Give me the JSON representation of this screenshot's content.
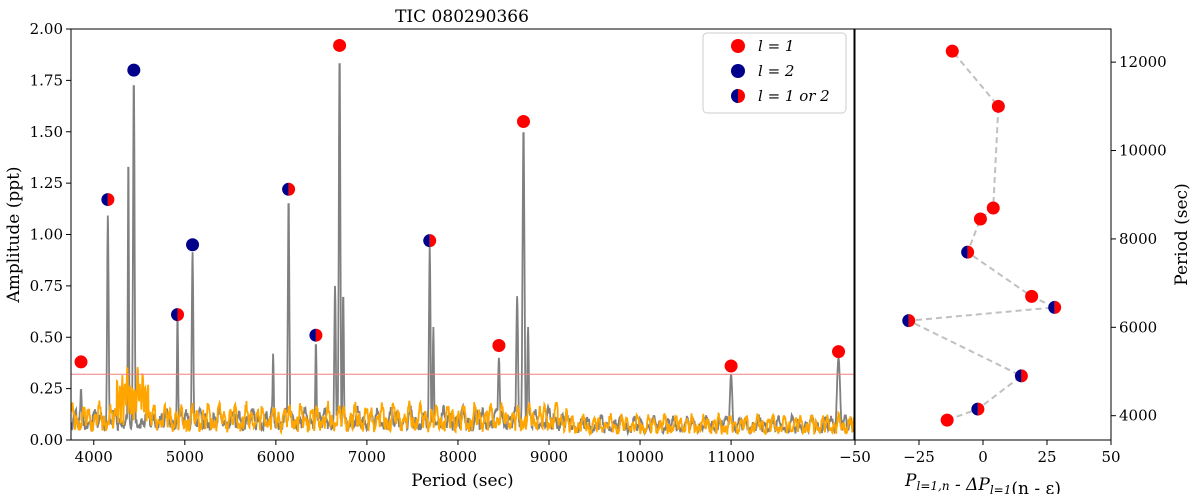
{
  "title": "TIC 080290366",
  "colors": {
    "l1": "#ff0000",
    "l2": "#00008b",
    "gray": "#808080",
    "orange": "#ffa500",
    "threshold": "#f08080",
    "dashed": "#c0c0c0"
  },
  "chart_data": [
    {
      "type": "line",
      "title": "TIC 080290366",
      "xlabel": "Period (sec)",
      "ylabel": "Amplitude (ppt)",
      "xlim": [
        3750,
        12350
      ],
      "ylim": [
        0,
        2.0
      ],
      "xticks": [
        "4000",
        "5000",
        "6000",
        "7000",
        "8000",
        "9000",
        "10000",
        "11000"
      ],
      "yticks": [
        "0.00",
        "0.25",
        "0.50",
        "0.75",
        "1.00",
        "1.25",
        "1.50",
        "1.75",
        "2.00"
      ],
      "threshold": 0.32,
      "grid": false,
      "legend_position": "top-right",
      "legend": [
        {
          "label": "l = 1",
          "mode": "1"
        },
        {
          "label": "l = 2",
          "mode": "2"
        },
        {
          "label": "l = 1 or 2",
          "mode": "1or2"
        }
      ],
      "series": [
        {
          "role": "periodogram",
          "color": "gray"
        },
        {
          "role": "residual",
          "color": "orange"
        }
      ],
      "peaks": [
        {
          "x": 3860,
          "y": 0.25,
          "w": 12,
          "mode": null
        },
        {
          "x": 4155,
          "y": 1.1,
          "w": 12,
          "mode": null
        },
        {
          "x": 4380,
          "y": 1.41,
          "w": 8,
          "mode": null
        },
        {
          "x": 4440,
          "y": 1.77,
          "w": 12,
          "mode": null
        },
        {
          "x": 4920,
          "y": 0.6,
          "w": 10,
          "mode": null
        },
        {
          "x": 5085,
          "y": 0.92,
          "w": 12,
          "mode": null
        },
        {
          "x": 5970,
          "y": 0.42,
          "w": 10,
          "mode": null
        },
        {
          "x": 6140,
          "y": 1.18,
          "w": 12,
          "mode": null
        },
        {
          "x": 6440,
          "y": 0.48,
          "w": 10,
          "mode": null
        },
        {
          "x": 6650,
          "y": 0.75,
          "w": 12,
          "mode": null
        },
        {
          "x": 6700,
          "y": 1.88,
          "w": 12,
          "mode": null
        },
        {
          "x": 6740,
          "y": 0.72,
          "w": 10,
          "mode": null
        },
        {
          "x": 7690,
          "y": 0.94,
          "w": 12,
          "mode": null
        },
        {
          "x": 7730,
          "y": 0.55,
          "w": 10,
          "mode": null
        },
        {
          "x": 8450,
          "y": 0.4,
          "w": 15,
          "mode": null
        },
        {
          "x": 8650,
          "y": 0.7,
          "w": 14,
          "mode": null
        },
        {
          "x": 8720,
          "y": 1.52,
          "w": 15,
          "mode": null
        },
        {
          "x": 8770,
          "y": 0.55,
          "w": 12,
          "mode": null
        },
        {
          "x": 11000,
          "y": 0.32,
          "w": 20,
          "mode": null
        },
        {
          "x": 12180,
          "y": 0.4,
          "w": 25,
          "mode": null
        }
      ],
      "markers": [
        {
          "x": 3860,
          "y": 0.38,
          "mode": "1"
        },
        {
          "x": 4155,
          "y": 1.17,
          "mode": "1or2"
        },
        {
          "x": 4440,
          "y": 1.8,
          "mode": "2"
        },
        {
          "x": 4920,
          "y": 0.61,
          "mode": "1or2"
        },
        {
          "x": 5085,
          "y": 0.95,
          "mode": "2"
        },
        {
          "x": 6140,
          "y": 1.22,
          "mode": "1or2"
        },
        {
          "x": 6440,
          "y": 0.51,
          "mode": "1or2"
        },
        {
          "x": 6700,
          "y": 1.92,
          "mode": "1"
        },
        {
          "x": 7690,
          "y": 0.97,
          "mode": "1or2"
        },
        {
          "x": 8450,
          "y": 0.46,
          "mode": "1"
        },
        {
          "x": 8720,
          "y": 1.55,
          "mode": "1"
        },
        {
          "x": 11000,
          "y": 0.36,
          "mode": "1"
        },
        {
          "x": 12180,
          "y": 0.43,
          "mode": "1"
        }
      ]
    },
    {
      "type": "scatter",
      "xlabel": "P_{l=1,n} - ΔP_{l=1}(n - ε)",
      "ylabel": "Period (sec)",
      "xlim": [
        -50,
        50
      ],
      "ylim": [
        3450,
        12750
      ],
      "xticks": [
        "-50",
        "-25",
        "0",
        "25",
        "50"
      ],
      "yticks": [
        "4000",
        "6000",
        "8000",
        "10000",
        "12000"
      ],
      "y_axis_side": "right",
      "grid": false,
      "points": [
        {
          "x": -14,
          "y": 3900,
          "mode": "1"
        },
        {
          "x": -2,
          "y": 4150,
          "mode": "1or2"
        },
        {
          "x": 15,
          "y": 4900,
          "mode": "1or2"
        },
        {
          "x": -29,
          "y": 6150,
          "mode": "1or2"
        },
        {
          "x": 28,
          "y": 6450,
          "mode": "1or2"
        },
        {
          "x": 19,
          "y": 6700,
          "mode": "1"
        },
        {
          "x": -6,
          "y": 7700,
          "mode": "1or2"
        },
        {
          "x": -1,
          "y": 8450,
          "mode": "1"
        },
        {
          "x": 4,
          "y": 8700,
          "mode": "1"
        },
        {
          "x": 6,
          "y": 11000,
          "mode": "1"
        },
        {
          "x": -12,
          "y": 12250,
          "mode": "1"
        }
      ]
    }
  ]
}
